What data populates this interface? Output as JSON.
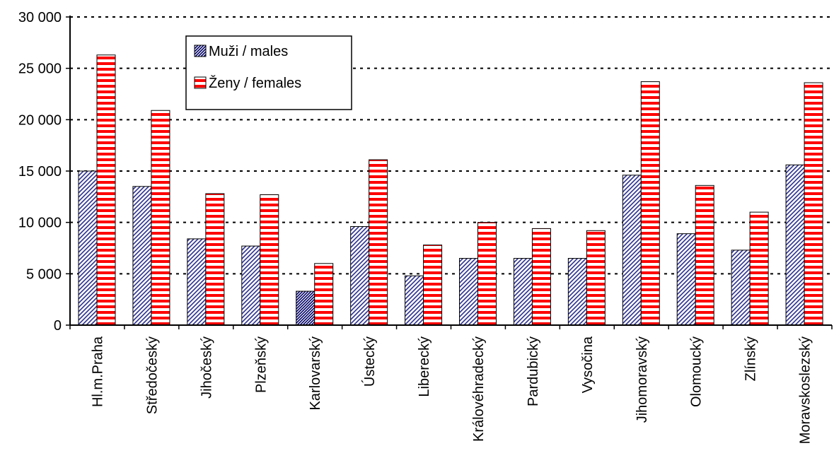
{
  "chart_data": {
    "type": "bar",
    "title": "",
    "xlabel": "",
    "ylabel": "",
    "ylim": [
      0,
      30000
    ],
    "yticks": [
      0,
      5000,
      10000,
      15000,
      20000,
      25000,
      30000
    ],
    "ytick_labels": [
      "0",
      "5 000",
      "10 000",
      "15 000",
      "20 000",
      "25 000",
      "30 000"
    ],
    "grid": "horizontal dotted",
    "legend_position": "top-left",
    "categories": [
      "Hl.m.Praha",
      "Středočeský",
      "Jihočeský",
      "Plzeňský",
      "Karlovarský",
      "Ústecký",
      "Liberecký",
      "Královéhradecký",
      "Pardubický",
      "Vysočina",
      "Jihomoravský",
      "Olomoucký",
      "Zlínský",
      "Moravskoslezský"
    ],
    "series": [
      {
        "name": "Muži / males",
        "color": "#2b2f8f",
        "pattern": "diagonal-hatch",
        "values": [
          15000,
          13500,
          8400,
          7700,
          3300,
          9600,
          4800,
          6500,
          6500,
          6500,
          14600,
          8900,
          7300,
          15600
        ]
      },
      {
        "name": "Ženy / females",
        "color": "#ff0000",
        "pattern": "horizontal-stripes",
        "values": [
          26300,
          20900,
          12800,
          12700,
          6000,
          16100,
          7800,
          10000,
          9400,
          9200,
          23700,
          13600,
          11000,
          23600
        ]
      }
    ]
  }
}
